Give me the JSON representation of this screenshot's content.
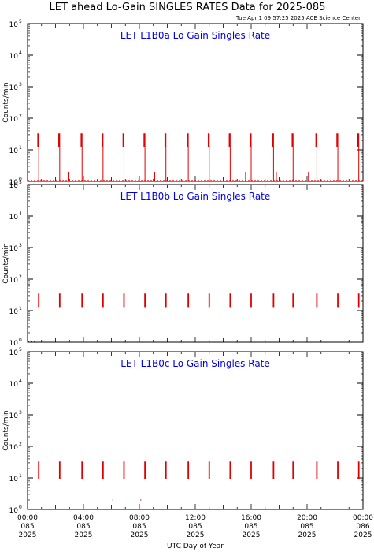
{
  "title": "LET ahead Lo-Gain SINGLES RATES Data for 2025-085",
  "timestamp": "Tue Apr  1 09:57:25 2025 ACE Science Center",
  "xlabel": "UTC Day of Year",
  "colors": {
    "data": "#e00000",
    "label": "#0000e0",
    "axis": "#000000"
  },
  "x_ticks": [
    {
      "time": "00:00",
      "doy": "085",
      "year": "2025"
    },
    {
      "time": "04:00",
      "doy": "085",
      "year": "2025"
    },
    {
      "time": "08:00",
      "doy": "085",
      "year": "2025"
    },
    {
      "time": "12:00",
      "doy": "085",
      "year": "2025"
    },
    {
      "time": "16:00",
      "doy": "085",
      "year": "2025"
    },
    {
      "time": "20:00",
      "doy": "085",
      "year": "2025"
    },
    {
      "time": "00:00",
      "doy": "086",
      "year": "2025"
    }
  ],
  "chart_data": [
    {
      "type": "scatter",
      "label": "LET L1B0a Lo Gain Singles Rate",
      "ylabel": "Counts/min",
      "yscale": "log",
      "ylim": [
        1,
        100000
      ],
      "xlim_hours": [
        0,
        24
      ],
      "y_ticks": [
        {
          "base": "10",
          "exp": "0",
          "value": 1
        },
        {
          "base": "10",
          "exp": "1",
          "value": 10
        },
        {
          "base": "10",
          "exp": "2",
          "value": 100
        },
        {
          "base": "10",
          "exp": "3",
          "value": 1000
        },
        {
          "base": "10",
          "exp": "4",
          "value": 10000
        },
        {
          "base": "10",
          "exp": "5",
          "value": 100000
        }
      ],
      "bursts": [
        {
          "t": 0.8,
          "low": 12,
          "high": 33,
          "floor": 1
        },
        {
          "t": 2.3,
          "low": 12,
          "high": 33,
          "floor": 1
        },
        {
          "t": 3.9,
          "low": 12,
          "high": 33,
          "floor": 1
        },
        {
          "t": 5.4,
          "low": 12,
          "high": 33,
          "floor": 1
        },
        {
          "t": 6.9,
          "low": 12,
          "high": 33,
          "floor": 1
        },
        {
          "t": 8.4,
          "low": 12,
          "high": 33,
          "floor": 1
        },
        {
          "t": 9.9,
          "low": 12,
          "high": 33,
          "floor": 1
        },
        {
          "t": 11.5,
          "low": 12,
          "high": 33,
          "floor": 1
        },
        {
          "t": 13.0,
          "low": 12,
          "high": 33,
          "floor": 1
        },
        {
          "t": 14.5,
          "low": 12,
          "high": 33,
          "floor": 1
        },
        {
          "t": 16.0,
          "low": 12,
          "high": 33,
          "floor": 1
        },
        {
          "t": 17.6,
          "low": 12,
          "high": 33,
          "floor": 1
        },
        {
          "t": 19.0,
          "low": 12,
          "high": 33,
          "floor": 1
        },
        {
          "t": 20.7,
          "low": 12,
          "high": 33,
          "floor": 1
        },
        {
          "t": 22.2,
          "low": 12,
          "high": 33,
          "floor": 1
        },
        {
          "t": 23.7,
          "low": 12,
          "high": 33,
          "floor": 1
        }
      ],
      "spikes": [
        {
          "t": 2.9,
          "high": 2
        },
        {
          "t": 9.1,
          "high": 2
        },
        {
          "t": 15.6,
          "high": 2
        },
        {
          "t": 17.8,
          "high": 2
        },
        {
          "t": 20.1,
          "high": 2
        }
      ],
      "baseline": {
        "start": 0,
        "end": 24,
        "value": 1
      }
    },
    {
      "type": "scatter",
      "label": "LET L1B0b Lo Gain Singles Rate",
      "ylabel": "Counts/min",
      "yscale": "log",
      "ylim": [
        1,
        100000
      ],
      "xlim_hours": [
        0,
        24
      ],
      "y_ticks": [
        {
          "base": "10",
          "exp": "0",
          "value": 1
        },
        {
          "base": "10",
          "exp": "1",
          "value": 10
        },
        {
          "base": "10",
          "exp": "2",
          "value": 100
        },
        {
          "base": "10",
          "exp": "3",
          "value": 1000
        },
        {
          "base": "10",
          "exp": "4",
          "value": 10000
        },
        {
          "base": "10",
          "exp": "5",
          "value": 100000
        }
      ],
      "bursts": [
        {
          "t": 0.8,
          "low": 13,
          "high": 35
        },
        {
          "t": 2.3,
          "low": 13,
          "high": 35
        },
        {
          "t": 3.9,
          "low": 13,
          "high": 35
        },
        {
          "t": 5.4,
          "low": 13,
          "high": 35
        },
        {
          "t": 6.9,
          "low": 13,
          "high": 35
        },
        {
          "t": 8.4,
          "low": 13,
          "high": 35
        },
        {
          "t": 9.9,
          "low": 13,
          "high": 35
        },
        {
          "t": 11.5,
          "low": 13,
          "high": 35
        },
        {
          "t": 13.0,
          "low": 13,
          "high": 35
        },
        {
          "t": 14.5,
          "low": 13,
          "high": 35
        },
        {
          "t": 16.0,
          "low": 13,
          "high": 35
        },
        {
          "t": 17.6,
          "low": 13,
          "high": 35
        },
        {
          "t": 19.0,
          "low": 13,
          "high": 35
        },
        {
          "t": 20.7,
          "low": 13,
          "high": 35
        },
        {
          "t": 22.2,
          "low": 13,
          "high": 35
        },
        {
          "t": 23.7,
          "low": 13,
          "high": 35
        }
      ],
      "spikes": [],
      "baseline": {
        "start": 0,
        "end": 0.5,
        "value": 1
      }
    },
    {
      "type": "scatter",
      "label": "LET L1B0c Lo Gain Singles Rate",
      "ylabel": "Counts/min",
      "yscale": "log",
      "ylim": [
        1,
        100000
      ],
      "xlim_hours": [
        0,
        24
      ],
      "y_ticks": [
        {
          "base": "10",
          "exp": "0",
          "value": 1
        },
        {
          "base": "10",
          "exp": "1",
          "value": 10
        },
        {
          "base": "10",
          "exp": "2",
          "value": 100
        },
        {
          "base": "10",
          "exp": "3",
          "value": 1000
        },
        {
          "base": "10",
          "exp": "4",
          "value": 10000
        },
        {
          "base": "10",
          "exp": "5",
          "value": 100000
        }
      ],
      "bursts": [
        {
          "t": 0.8,
          "low": 9,
          "high": 33
        },
        {
          "t": 2.3,
          "low": 9,
          "high": 33
        },
        {
          "t": 3.9,
          "low": 9,
          "high": 33
        },
        {
          "t": 5.4,
          "low": 9,
          "high": 33
        },
        {
          "t": 6.9,
          "low": 9,
          "high": 33
        },
        {
          "t": 8.4,
          "low": 9,
          "high": 33
        },
        {
          "t": 9.9,
          "low": 9,
          "high": 33
        },
        {
          "t": 11.5,
          "low": 9,
          "high": 33
        },
        {
          "t": 13.0,
          "low": 9,
          "high": 33
        },
        {
          "t": 14.5,
          "low": 9,
          "high": 33
        },
        {
          "t": 16.0,
          "low": 9,
          "high": 33
        },
        {
          "t": 17.6,
          "low": 9,
          "high": 33
        },
        {
          "t": 19.0,
          "low": 9,
          "high": 33
        },
        {
          "t": 20.7,
          "low": 9,
          "high": 33
        },
        {
          "t": 22.2,
          "low": 9,
          "high": 33
        },
        {
          "t": 23.7,
          "low": 9,
          "high": 33
        }
      ],
      "spikes": [],
      "dots": [
        {
          "t": 6.1,
          "value": 2
        },
        {
          "t": 8.1,
          "value": 2
        }
      ],
      "baseline": null
    }
  ]
}
